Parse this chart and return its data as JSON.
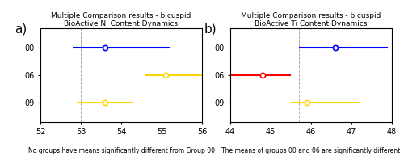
{
  "panel_a": {
    "title_line1": "Multiple Comparison results - bicuspid",
    "title_line2": "BioActive Ni Content Dynamics",
    "xlabel_note": "No groups have means significantly different from Group 00",
    "xlim": [
      52,
      56
    ],
    "xticks": [
      52,
      53,
      54,
      55,
      56
    ],
    "ytick_labels": [
      "00",
      "06",
      "09"
    ],
    "ytick_positions": [
      1,
      2,
      3
    ],
    "groups": [
      {
        "y": 1,
        "mean": 53.6,
        "lo": 52.8,
        "hi": 55.2,
        "color": "#0000FF",
        "marker_color": "#FFFFFF"
      },
      {
        "y": 2,
        "mean": 55.1,
        "lo": 54.6,
        "hi": 56.0,
        "color": "#FFD700",
        "marker_color": "#FFFFFF"
      },
      {
        "y": 3,
        "mean": 53.6,
        "lo": 52.9,
        "hi": 54.3,
        "color": "#FFD700",
        "marker_color": "#FFFFFF"
      }
    ],
    "vlines": [
      53.0,
      54.8
    ],
    "background_color": "#ffffff"
  },
  "panel_b": {
    "title_line1": "Multiple Comparison results - bicuspid",
    "title_line2": "BioActive Ti Content Dynamics",
    "xlabel_note": "The means of groups 00 and 06 are significantly different",
    "xlim": [
      44,
      48
    ],
    "xticks": [
      44,
      45,
      46,
      47,
      48
    ],
    "ytick_labels": [
      "00",
      "06",
      "09"
    ],
    "ytick_positions": [
      1,
      2,
      3
    ],
    "groups": [
      {
        "y": 1,
        "mean": 46.6,
        "lo": 45.7,
        "hi": 47.9,
        "color": "#0000FF",
        "marker_color": "#FFFFFF"
      },
      {
        "y": 2,
        "mean": 44.8,
        "lo": 44.0,
        "hi": 45.5,
        "color": "#FF0000",
        "marker_color": "#FFFFFF"
      },
      {
        "y": 3,
        "mean": 45.9,
        "lo": 45.5,
        "hi": 47.2,
        "color": "#FFD700",
        "marker_color": "#FFFFFF"
      }
    ],
    "vlines": [
      45.7,
      47.4
    ],
    "background_color": "#ffffff"
  },
  "fig_width": 5.0,
  "fig_height": 1.93,
  "dpi": 100,
  "title_fontsize": 6.5,
  "xlabel_fontsize": 5.5,
  "tick_fontsize": 7,
  "panel_label_fontsize": 11,
  "line_width": 1.5,
  "marker_size": 4.5,
  "vline_color": "#aaaaaa",
  "vline_lw": 0.7
}
